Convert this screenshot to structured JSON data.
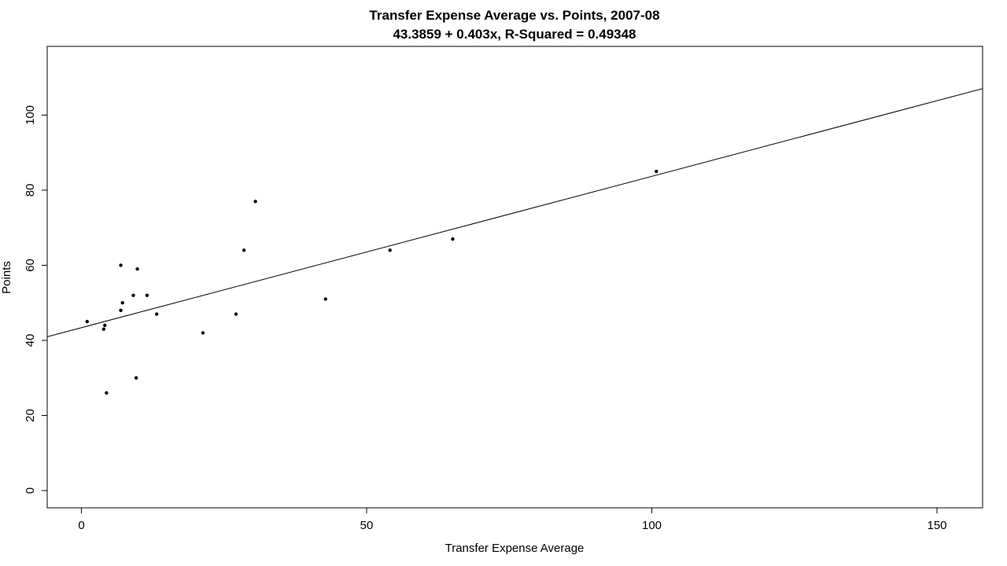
{
  "chart_data": {
    "type": "scatter",
    "title": "Transfer Expense Average vs. Points, 2007-08",
    "subtitle": "43.3859 + 0.403x, R-Squared = 0.49348",
    "xlabel": "Transfer Expense Average",
    "ylabel": "Points",
    "xlim": [
      -6,
      158
    ],
    "ylim": [
      -4.6,
      118.3
    ],
    "xticks": [
      0,
      50,
      100,
      150
    ],
    "xtick_labels": [
      "0",
      "50",
      "100",
      "150"
    ],
    "yticks": [
      0,
      20,
      40,
      60,
      80,
      100
    ],
    "ytick_labels": [
      "0",
      "20",
      "40",
      "60",
      "80",
      "100"
    ],
    "grid": false,
    "legend": "none",
    "regression": {
      "intercept": 43.3859,
      "slope": 0.403
    },
    "points": [
      {
        "x": 1.0,
        "y": 45
      },
      {
        "x": 3.9,
        "y": 43
      },
      {
        "x": 4.1,
        "y": 44
      },
      {
        "x": 4.4,
        "y": 26
      },
      {
        "x": 6.9,
        "y": 48
      },
      {
        "x": 6.9,
        "y": 60
      },
      {
        "x": 7.2,
        "y": 50
      },
      {
        "x": 9.1,
        "y": 52
      },
      {
        "x": 9.6,
        "y": 30
      },
      {
        "x": 9.8,
        "y": 59
      },
      {
        "x": 11.5,
        "y": 52
      },
      {
        "x": 13.2,
        "y": 47
      },
      {
        "x": 21.3,
        "y": 42
      },
      {
        "x": 27.1,
        "y": 47
      },
      {
        "x": 28.5,
        "y": 64
      },
      {
        "x": 30.5,
        "y": 77
      },
      {
        "x": 42.8,
        "y": 51
      },
      {
        "x": 54.1,
        "y": 64
      },
      {
        "x": 65.1,
        "y": 67
      },
      {
        "x": 100.8,
        "y": 85
      }
    ]
  }
}
